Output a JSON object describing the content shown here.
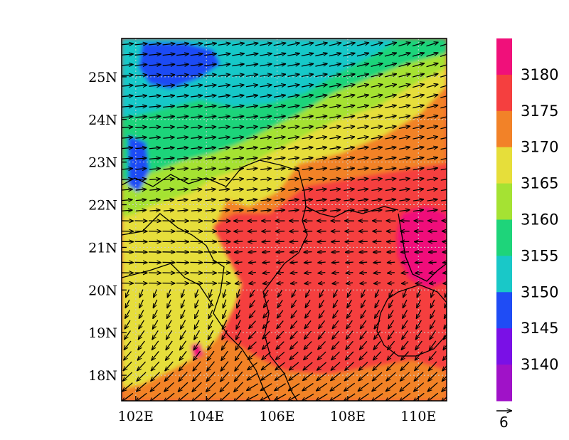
{
  "map": {
    "lon_range": [
      101.6,
      110.8
    ],
    "lat_range": [
      17.4,
      25.9
    ],
    "lon_ticks": [
      102,
      104,
      106,
      108,
      110
    ],
    "lat_ticks": [
      18,
      19,
      20,
      21,
      22,
      23,
      24,
      25
    ],
    "lon_tick_labels": [
      "102E",
      "104E",
      "106E",
      "108E",
      "110E"
    ],
    "lat_tick_labels": [
      "18N",
      "19N",
      "20N",
      "21N",
      "22N",
      "23N",
      "24N",
      "25N"
    ],
    "grid": true
  },
  "colorbar": {
    "labels": [
      "3180",
      "3175",
      "3170",
      "3165",
      "3160",
      "3155",
      "3150",
      "3145",
      "3140"
    ],
    "colors": [
      "#f0107a",
      "#f53f3f",
      "#f28228",
      "#e6de3a",
      "#a5e233",
      "#1ed47a",
      "#19c8c8",
      "#1f4cf5",
      "#7a10e6",
      "#a012c8"
    ]
  },
  "reference_vector": {
    "label": "6"
  },
  "chart_data": {
    "type": "heatmap",
    "description_of_field": "filled contours with wind vectors",
    "contour_levels": [
      3140,
      3145,
      3150,
      3155,
      3160,
      3165,
      3170,
      3175,
      3180
    ],
    "regions": [
      {
        "range": "<3150 (blue)",
        "area": "north-west corner near 103E-105E, 25N-26N"
      },
      {
        "range": "3150-3160",
        "area": "north, 102E-108E, 23.5N-25.5N"
      },
      {
        "range": "3160-3170",
        "area": "west, 102E-106E, 19N-23N"
      },
      {
        "range": "3170-3175",
        "area": "south-west 102E-106E, 17.5N-19N and north-east 108E-110E, 23N-25N"
      },
      {
        "range": "3175-3180",
        "area": "centre and south-east 106E-110E, 18N-22N"
      },
      {
        "range": ">3180 (magenta)",
        "area": "around 109.5E-110.5E, 20.5N-21.8N"
      }
    ],
    "wind_regimes": [
      {
        "area": "north of 22N",
        "direction": "westerly / south-westerly"
      },
      {
        "area": "central 20N-22N",
        "direction": "westerly turning easterly east of 106E"
      },
      {
        "area": "south of 20N",
        "direction": "easterly / north-easterly"
      }
    ]
  }
}
